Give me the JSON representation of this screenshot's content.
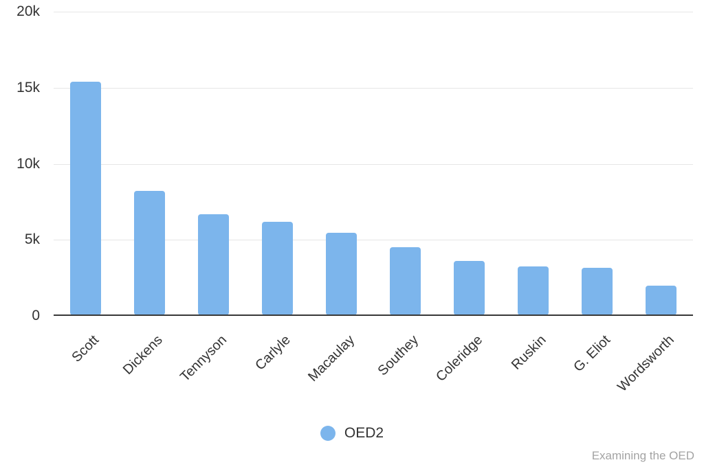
{
  "chart_data": {
    "type": "bar",
    "title": "",
    "xlabel": "",
    "ylabel": "",
    "categories": [
      "Scott",
      "Dickens",
      "Tennyson",
      "Carlyle",
      "Macaulay",
      "Southey",
      "Coleridge",
      "Ruskin",
      "G. Eliot",
      "Wordsworth"
    ],
    "series": [
      {
        "name": "OED2",
        "values": [
          15350,
          8150,
          6650,
          6150,
          5400,
          4450,
          3550,
          3200,
          3100,
          1950
        ]
      }
    ],
    "ylim": [
      0,
      20000
    ],
    "yticks": [
      {
        "value": 0,
        "label": "0"
      },
      {
        "value": 5000,
        "label": "5k"
      },
      {
        "value": 10000,
        "label": "10k"
      },
      {
        "value": 15000,
        "label": "15k"
      },
      {
        "value": 20000,
        "label": "20k"
      }
    ],
    "grid": true,
    "x_label_rotation": -45,
    "legend_position": "bottom-center",
    "bar_color": "#7cb5ec",
    "gridline_color": "#e6e6e6",
    "axis_line_color": "#373737",
    "label_color": "#333333"
  },
  "legend": {
    "label": "OED2"
  },
  "credits": {
    "text": "Examining the OED",
    "color": "#a3a3a3"
  }
}
